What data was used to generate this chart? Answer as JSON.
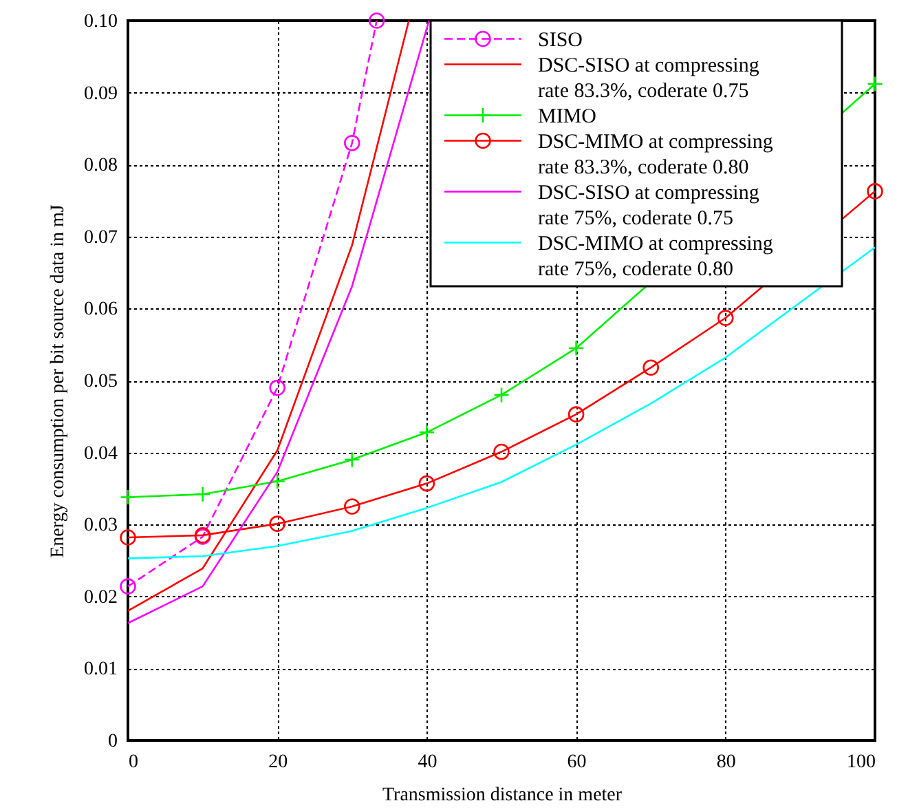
{
  "chart_data": {
    "type": "line",
    "xlabel": "Transmission distance in meter",
    "ylabel": "Energy consumption per bit source data in mJ",
    "xlim": [
      0,
      100
    ],
    "xticks": [
      0,
      20,
      40,
      60,
      80,
      100
    ],
    "ylim": [
      0,
      0.1
    ],
    "yticks": [
      0,
      0.01,
      0.02,
      0.03,
      0.04,
      0.05,
      0.06,
      0.07,
      0.08,
      0.09,
      {
        "value": 0.1,
        "label": "0.10"
      }
    ],
    "grid": true,
    "legend": "top right",
    "series": [
      {
        "name": "SISO",
        "color": "#ff00ff",
        "marker": "circle",
        "line_style": "dashed",
        "x": [
          0,
          10,
          20,
          30,
          33.3
        ],
        "values": [
          0.0214,
          0.0283,
          0.049,
          0.083,
          0.1
        ]
      },
      {
        "name": "DSC-SISO at compressing rate 83.3%, coderate 0.75",
        "color": "#ff0000",
        "marker": "none",
        "line_style": "solid",
        "x": [
          0,
          10,
          20,
          30,
          37.6
        ],
        "values": [
          0.018,
          0.0239,
          0.0403,
          0.0688,
          0.1
        ]
      },
      {
        "name": "MIMO",
        "color": "#00ee00",
        "marker": "cross",
        "line_style": "solid",
        "x": [
          0,
          10,
          20,
          30,
          40,
          50,
          60,
          70,
          80,
          90,
          100
        ],
        "values": [
          0.0338,
          0.0342,
          0.036,
          0.039,
          0.0428,
          0.048,
          0.0545,
          null,
          null,
          null,
          0.0912
        ]
      },
      {
        "name": "DSC-MIMO at compressing rate 83.3%, coderate 0.80",
        "color": "#ff0000",
        "marker": "circle",
        "line_style": "solid",
        "x": [
          0,
          10,
          20,
          30,
          40,
          50,
          60,
          70,
          80,
          90,
          100
        ],
        "values": [
          0.0282,
          0.0285,
          0.0301,
          0.0325,
          0.0357,
          0.0401,
          0.0453,
          0.0518,
          0.0587,
          null,
          0.0763
        ]
      },
      {
        "name": "DSC-SISO at compressing rate 75%, coderate 0.75",
        "color": "#ff00ff",
        "marker": "none",
        "line_style": "solid",
        "x": [
          0,
          10,
          20,
          30,
          40.3
        ],
        "values": [
          0.0163,
          0.0214,
          0.0373,
          0.0631,
          0.1
        ]
      },
      {
        "name": "DSC-MIMO at compressing rate 75%, coderate 0.80",
        "color": "#00ffff",
        "marker": "none",
        "line_style": "solid",
        "x": [
          0,
          10,
          20,
          30,
          40,
          50,
          60,
          70,
          80,
          90,
          100
        ],
        "values": [
          0.0253,
          0.0256,
          0.027,
          0.0291,
          0.0323,
          0.0359,
          0.0411,
          0.0468,
          0.0532,
          null,
          0.0685
        ]
      }
    ]
  }
}
